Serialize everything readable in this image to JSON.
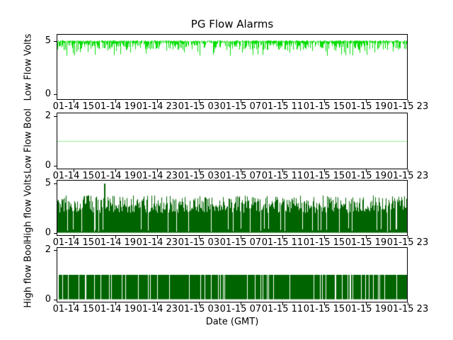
{
  "chart_data": {
    "type": "line",
    "title": "PG Flow Alarms",
    "xlabel": "Date (GMT)",
    "xticklabels": [
      "01-14 15",
      "01-14 19",
      "01-14 23",
      "01-15 03",
      "01-15 07",
      "01-15 11",
      "01-15 15",
      "01-15 19",
      "01-15 23"
    ],
    "grid": false,
    "legend": "none",
    "subplots": [
      {
        "ylabel": "Low Flow Volts",
        "yticks": [
          0,
          5
        ],
        "ylim": [
          -0.5,
          5.6
        ],
        "color": "#00dd00",
        "pattern": "noisy_high",
        "baseline": 5,
        "typical_range": [
          4.3,
          5.05
        ],
        "spike_min": 3.6,
        "description": "signal holds near 5 with continuous brief downward noise spikes across full span"
      },
      {
        "ylabel": "Low Flow Bool",
        "yticks": [
          0,
          2
        ],
        "ylim": [
          -0.1,
          2.1
        ],
        "color": "#90ee90",
        "pattern": "constant",
        "value": 1,
        "description": "constant flat line at 1 for entire span"
      },
      {
        "ylabel": "High flow Volts",
        "yticks": [
          0,
          5
        ],
        "ylim": [
          -0.25,
          5.3
        ],
        "color": "#006400",
        "pattern": "dense_fill",
        "band_low": 2.0,
        "band_high": 3.8,
        "gap_prob": 0.1,
        "spike": {
          "x_frac": 0.135,
          "value": 5
        },
        "description": "dense oscillation between 0 and ~4 with narrow gaps and one spike to 5 near 01-14 19"
      },
      {
        "ylabel": "High flow Bool",
        "yticks": [
          0,
          2
        ],
        "ylim": [
          -0.1,
          2.1
        ],
        "color": "#006400",
        "pattern": "binary_fill",
        "high": 1,
        "gap_prob": 0.1,
        "description": "mostly 1 with frequent brief drops to 0 producing thin white gaps"
      }
    ]
  }
}
